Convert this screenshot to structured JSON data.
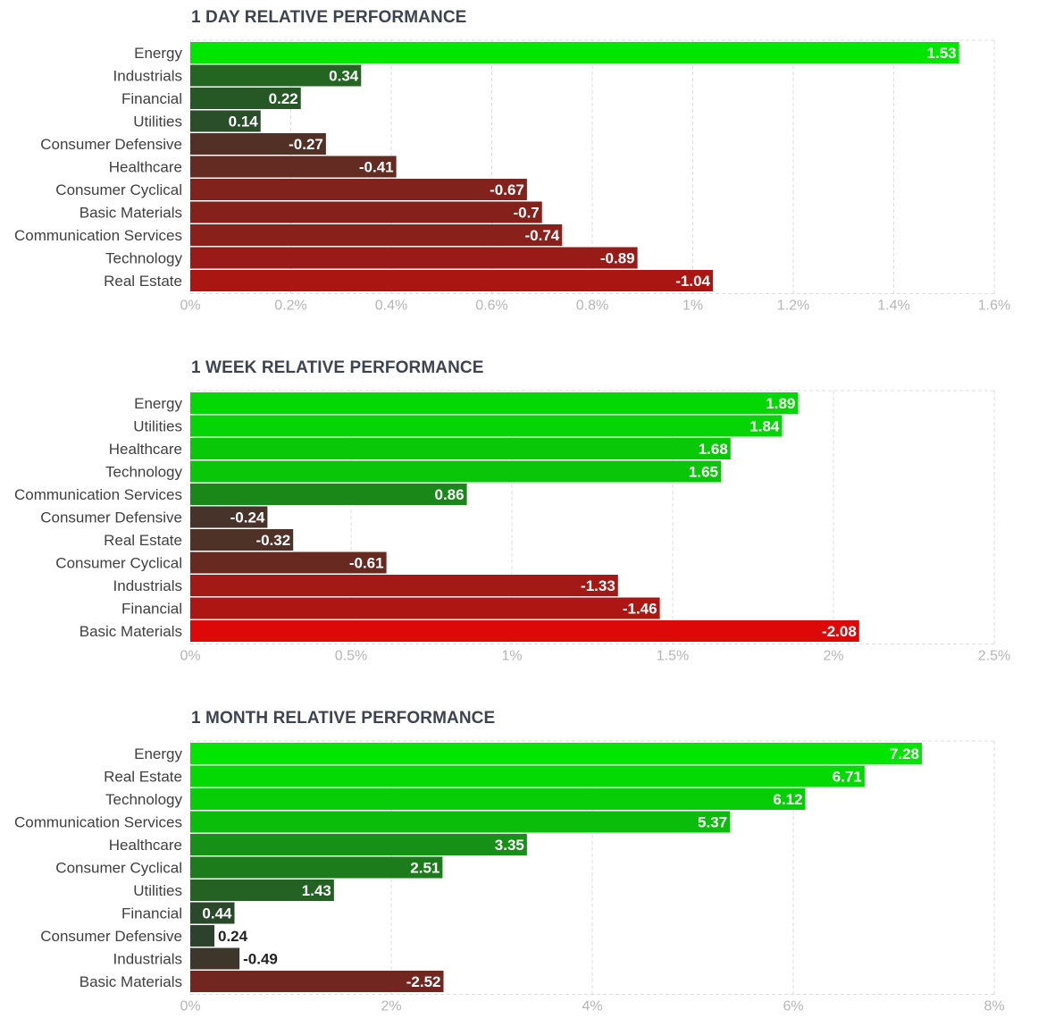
{
  "colors": {
    "positive_strong": "#00e600",
    "negative_strong": "#dd0808",
    "neutral": "#2e3a2e",
    "grid": "#dcdcdc",
    "tick_text": "#b5b5b5",
    "category_text": "#404040",
    "title_text": "#3d4450"
  },
  "chart_data": [
    {
      "type": "bar",
      "orientation": "horizontal",
      "title": "1 DAY RELATIVE PERFORMANCE",
      "categories": [
        "Energy",
        "Industrials",
        "Financial",
        "Utilities",
        "Consumer Defensive",
        "Healthcare",
        "Consumer Cyclical",
        "Basic Materials",
        "Communication Services",
        "Technology",
        "Real Estate"
      ],
      "values": [
        1.53,
        0.34,
        0.22,
        0.14,
        -0.27,
        -0.41,
        -0.67,
        -0.7,
        -0.74,
        -0.89,
        -1.04
      ],
      "value_labels": [
        "1.53",
        "0.34",
        "0.22",
        "0.14",
        "-0.27",
        "-0.41",
        "-0.67",
        "-0.7",
        "-0.74",
        "-0.89",
        "-1.04"
      ],
      "xlim": [
        0,
        1.6
      ],
      "xticks": [
        0,
        0.2,
        0.4,
        0.6,
        0.8,
        1,
        1.2,
        1.4,
        1.6
      ],
      "xtick_labels": [
        "0%",
        "0.2%",
        "0.4%",
        "0.6%",
        "0.8%",
        "1%",
        "1.2%",
        "1.4%",
        "1.6%"
      ],
      "xlabel": "",
      "ylabel": "",
      "grid": true
    },
    {
      "type": "bar",
      "orientation": "horizontal",
      "title": "1 WEEK RELATIVE PERFORMANCE",
      "categories": [
        "Energy",
        "Utilities",
        "Healthcare",
        "Technology",
        "Communication Services",
        "Consumer Defensive",
        "Real Estate",
        "Consumer Cyclical",
        "Industrials",
        "Financial",
        "Basic Materials"
      ],
      "values": [
        1.89,
        1.84,
        1.68,
        1.65,
        0.86,
        -0.24,
        -0.32,
        -0.61,
        -1.33,
        -1.46,
        -2.08
      ],
      "value_labels": [
        "1.89",
        "1.84",
        "1.68",
        "1.65",
        "0.86",
        "-0.24",
        "-0.32",
        "-0.61",
        "-1.33",
        "-1.46",
        "-2.08"
      ],
      "xlim": [
        0,
        2.5
      ],
      "xticks": [
        0,
        0.5,
        1,
        1.5,
        2,
        2.5
      ],
      "xtick_labels": [
        "0%",
        "0.5%",
        "1%",
        "1.5%",
        "2%",
        "2.5%"
      ],
      "xlabel": "",
      "ylabel": "",
      "grid": true
    },
    {
      "type": "bar",
      "orientation": "horizontal",
      "title": "1 MONTH RELATIVE PERFORMANCE",
      "categories": [
        "Energy",
        "Real Estate",
        "Technology",
        "Communication Services",
        "Healthcare",
        "Consumer Cyclical",
        "Utilities",
        "Financial",
        "Consumer Defensive",
        "Industrials",
        "Basic Materials"
      ],
      "values": [
        7.28,
        6.71,
        6.12,
        5.37,
        3.35,
        2.51,
        1.43,
        0.44,
        0.24,
        -0.49,
        -2.52
      ],
      "value_labels": [
        "7.28",
        "6.71",
        "6.12",
        "5.37",
        "3.35",
        "2.51",
        "1.43",
        "0.44",
        "0.24",
        "-0.49",
        "-2.52"
      ],
      "xlim": [
        0,
        8
      ],
      "xticks": [
        0,
        2,
        4,
        6,
        8
      ],
      "xtick_labels": [
        "0%",
        "2%",
        "4%",
        "6%",
        "8%"
      ],
      "xlabel": "",
      "ylabel": "",
      "grid": true
    }
  ]
}
